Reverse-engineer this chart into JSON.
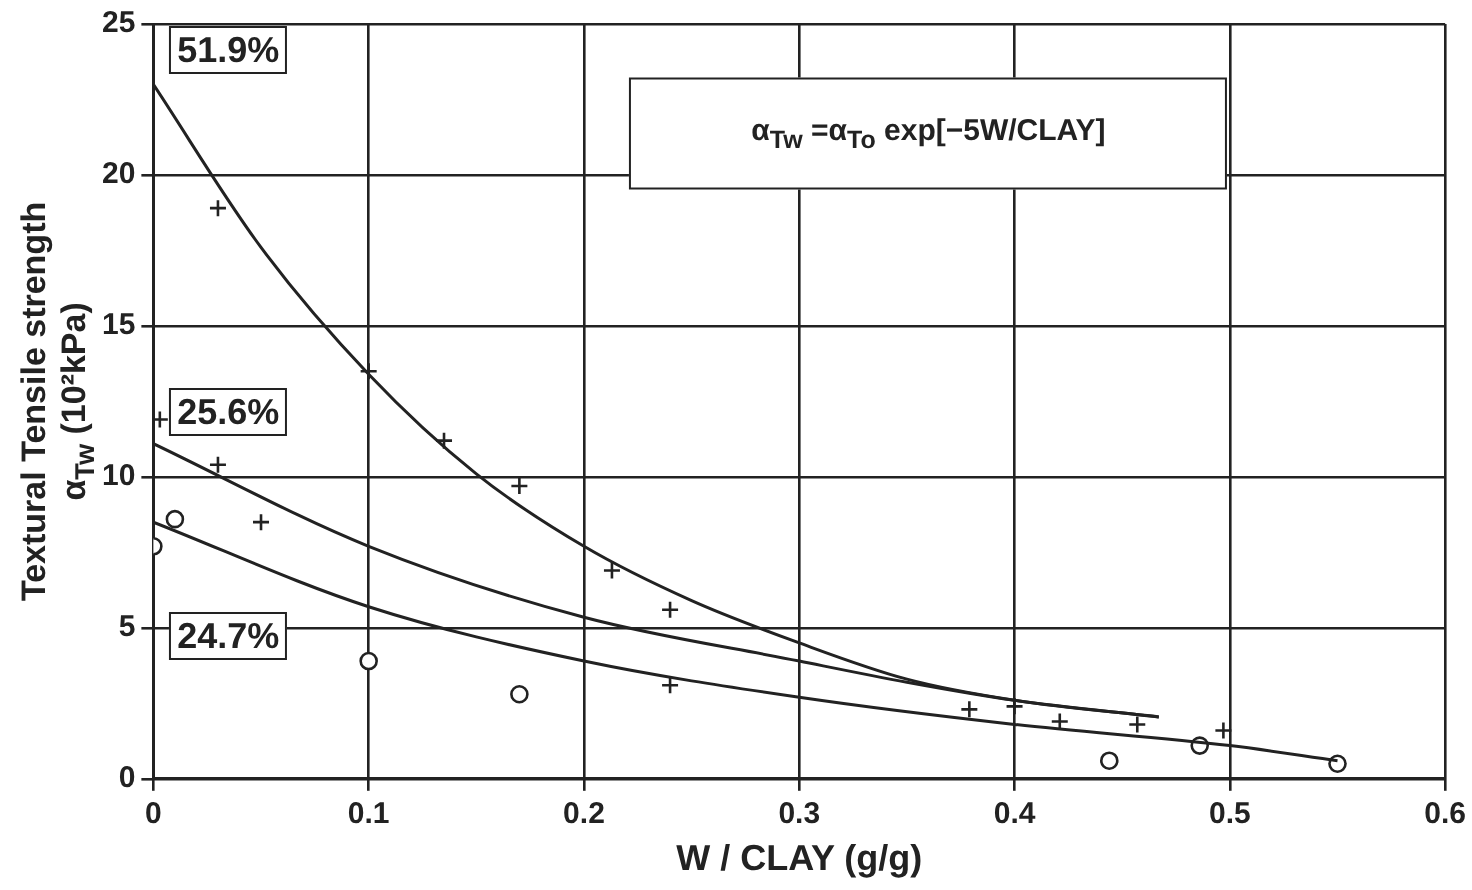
{
  "chart_data": {
    "type": "line",
    "xlabel": "W / CLAY (g/g)",
    "ylabel": "Textural Tensile strength\nα$_{Tw}$ (10²kPa)",
    "annotations": [
      "51.9%",
      "25.6%",
      "24.7%",
      "α$_{Tw}$ =α$_{To}$ exp[−5W/CLAY]"
    ],
    "xlim": [
      0,
      0.6
    ],
    "xticks": [
      0,
      0.1,
      0.2,
      0.3,
      0.4,
      0.5,
      0.6
    ],
    "ylim": [
      0,
      25
    ],
    "yticks": [
      0,
      5,
      10,
      15,
      20,
      25
    ],
    "grid": true,
    "legend": false,
    "series": [
      {
        "marker": "none",
        "color": "#222222",
        "x": [
          0,
          0.05,
          0.1,
          0.15,
          0.2,
          0.25,
          0.3,
          0.35,
          0.4,
          0.467
        ],
        "values": [
          23,
          17.6,
          13.4,
          10.1,
          7.7,
          5.9,
          4.5,
          3.3,
          2.6,
          2.05
        ]
      },
      {
        "marker": "none",
        "color": "#222222",
        "x": [
          0,
          0.1,
          0.2,
          0.3,
          0.35,
          0.4,
          0.467
        ],
        "values": [
          11.1,
          7.7,
          5.35,
          3.9,
          3.2,
          2.6,
          2.05
        ]
      },
      {
        "marker": "none",
        "color": "#222222",
        "x": [
          0,
          0.1,
          0.2,
          0.3,
          0.4,
          0.5,
          0.55
        ],
        "values": [
          8.5,
          5.7,
          3.9,
          2.7,
          1.8,
          1.1,
          0.6
        ]
      },
      {
        "type": "scatter",
        "marker": "cross",
        "color": "#222222",
        "x": [
          0.003,
          0.03,
          0.1,
          0.135,
          0.17,
          0.213,
          0.24,
          0.4,
          0.497
        ],
        "values": [
          11.9,
          18.9,
          13.5,
          11.2,
          9.7,
          6.9,
          5.6,
          2.4,
          1.6
        ]
      },
      {
        "type": "scatter",
        "marker": "cross",
        "color": "#222222",
        "x": [
          0.03,
          0.05,
          0.24,
          0.379,
          0.421,
          0.457
        ],
        "values": [
          10.4,
          8.5,
          3.1,
          2.3,
          1.9,
          1.8
        ]
      },
      {
        "type": "scatter",
        "marker": "circle",
        "color": "#222222",
        "x": [
          0,
          0.01,
          0.1,
          0.17,
          0.444,
          0.486,
          0.55
        ],
        "values": [
          7.7,
          8.6,
          3.9,
          2.8,
          0.6,
          1.1,
          0.5
        ]
      }
    ]
  }
}
